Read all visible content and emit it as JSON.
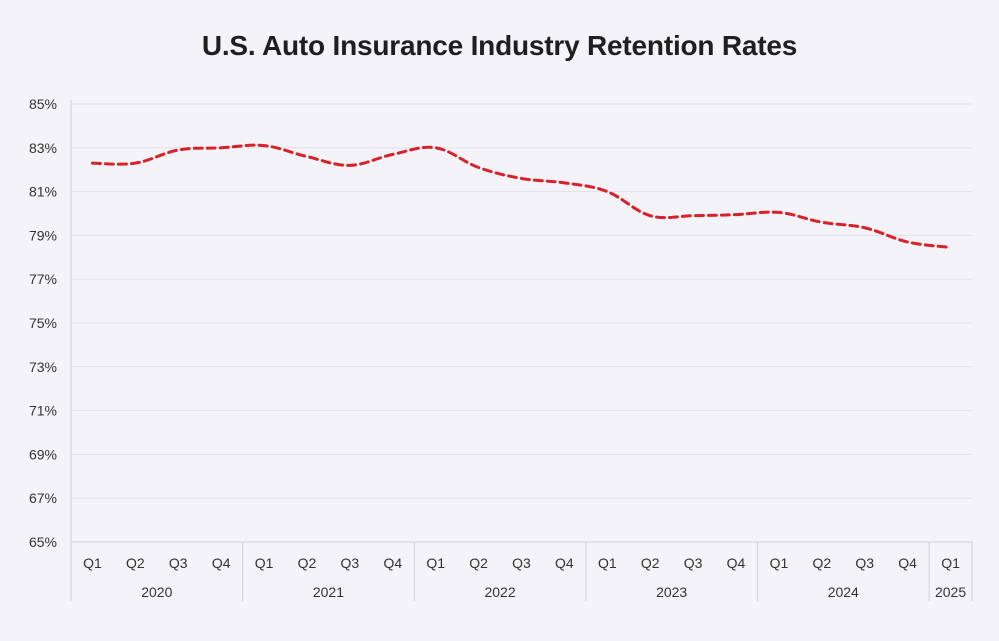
{
  "chart_data": {
    "type": "line",
    "title": "U.S. Auto Insurance Industry Retention Rates",
    "xlabel": "",
    "ylabel": "",
    "ylim": [
      65,
      85
    ],
    "yticks": [
      "65%",
      "67%",
      "69%",
      "71%",
      "73%",
      "75%",
      "77%",
      "79%",
      "81%",
      "83%",
      "85%"
    ],
    "ytick_values": [
      65,
      67,
      69,
      71,
      73,
      75,
      77,
      79,
      81,
      83,
      85
    ],
    "grid": true,
    "legend": "none",
    "categories": [
      "Q1",
      "Q2",
      "Q3",
      "Q4",
      "Q1",
      "Q2",
      "Q3",
      "Q4",
      "Q1",
      "Q2",
      "Q3",
      "Q4",
      "Q1",
      "Q2",
      "Q3",
      "Q4",
      "Q1",
      "Q2",
      "Q3",
      "Q4",
      "Q1"
    ],
    "year_groups": [
      {
        "label": "2020",
        "count": 4
      },
      {
        "label": "2021",
        "count": 4
      },
      {
        "label": "2022",
        "count": 4
      },
      {
        "label": "2023",
        "count": 4
      },
      {
        "label": "2024",
        "count": 4
      },
      {
        "label": "2025",
        "count": 1
      }
    ],
    "series": [
      {
        "values": [
          82.3,
          82.3,
          82.9,
          83.0,
          83.1,
          82.6,
          82.2,
          82.7,
          83.0,
          82.1,
          81.6,
          81.4,
          81.0,
          79.9,
          79.9,
          79.95,
          80.05,
          79.6,
          79.35,
          78.7,
          78.45
        ],
        "color": "#d8222a",
        "style": "dashed"
      }
    ]
  }
}
